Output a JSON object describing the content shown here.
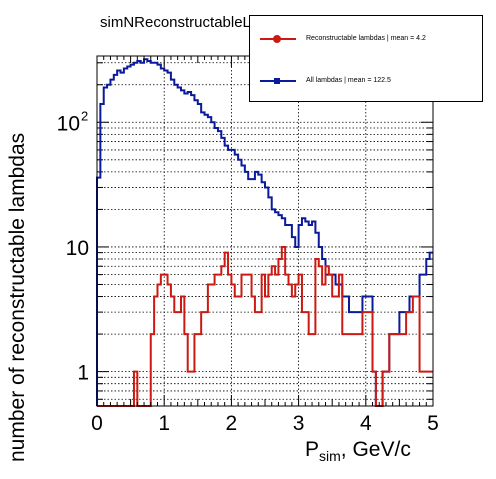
{
  "chart_data": {
    "type": "line",
    "title": "simNReconstructableLambda_P_sim",
    "xlabel_main": "P",
    "xlabel_sub": "sim",
    "xlabel_tail": ", GeV/c",
    "ylabel": "number of reconstructable lambdas",
    "xlim": [
      0,
      5
    ],
    "ylim": [
      0.53,
      340
    ],
    "yscale": "log",
    "grid": true,
    "legend_position": "top-right",
    "x_ticks": [
      "0",
      "1",
      "2",
      "3",
      "4",
      "5"
    ],
    "y_ticks": [
      {
        "value": 1,
        "label": "1"
      },
      {
        "value": 10,
        "label": "10"
      },
      {
        "value": 100,
        "label": "10",
        "exp": "2"
      }
    ],
    "bin_width": 0.05,
    "series": [
      {
        "name": "Reconstructable lambdas | mean =  4.2",
        "color": "#cc1a12",
        "marker": "circle",
        "values": [
          0.53,
          0.53,
          0.53,
          0.53,
          0.53,
          0.53,
          0.53,
          0.53,
          0.53,
          0.53,
          0.53,
          1,
          0.53,
          0.53,
          0.53,
          0.53,
          2,
          4,
          5,
          6,
          6,
          5,
          4,
          3,
          3,
          4,
          2,
          1,
          1,
          2,
          2,
          3,
          3,
          5,
          5,
          6,
          6,
          7,
          9,
          6,
          5,
          4,
          4,
          6,
          6,
          6,
          4,
          3,
          3,
          6,
          4,
          6,
          7,
          6,
          8,
          10,
          6,
          5,
          4,
          5,
          6,
          3,
          3,
          2,
          2,
          8,
          7,
          5,
          7,
          6,
          4,
          4,
          6,
          2,
          2,
          2,
          2,
          2,
          2,
          3,
          3,
          3,
          1,
          0.53,
          0.53,
          1,
          1,
          2,
          2,
          2,
          2,
          2,
          3,
          3,
          4,
          4,
          1,
          1,
          1,
          1
        ]
      },
      {
        "name": "All lambdas | mean =  122.5",
        "color": "#0a1a9a",
        "marker": "square",
        "values": [
          36,
          140,
          190,
          200,
          220,
          240,
          260,
          250,
          270,
          280,
          290,
          300,
          310,
          300,
          320,
          310,
          300,
          300,
          290,
          270,
          260,
          250,
          220,
          200,
          190,
          180,
          170,
          175,
          165,
          150,
          140,
          120,
          115,
          110,
          100,
          90,
          85,
          75,
          65,
          60,
          60,
          55,
          50,
          45,
          40,
          35,
          35,
          40,
          38,
          33,
          30,
          25,
          20,
          19,
          18,
          17,
          15,
          15,
          12,
          10,
          15,
          17,
          16,
          15,
          16,
          13,
          10,
          8,
          6,
          6,
          6,
          5,
          5,
          4,
          4,
          3,
          3,
          3,
          3,
          4,
          4,
          4,
          1,
          0.53,
          0.53,
          1,
          1,
          2,
          2,
          2,
          3,
          3,
          3,
          4,
          4,
          4,
          6,
          6,
          8,
          9
        ]
      }
    ]
  }
}
